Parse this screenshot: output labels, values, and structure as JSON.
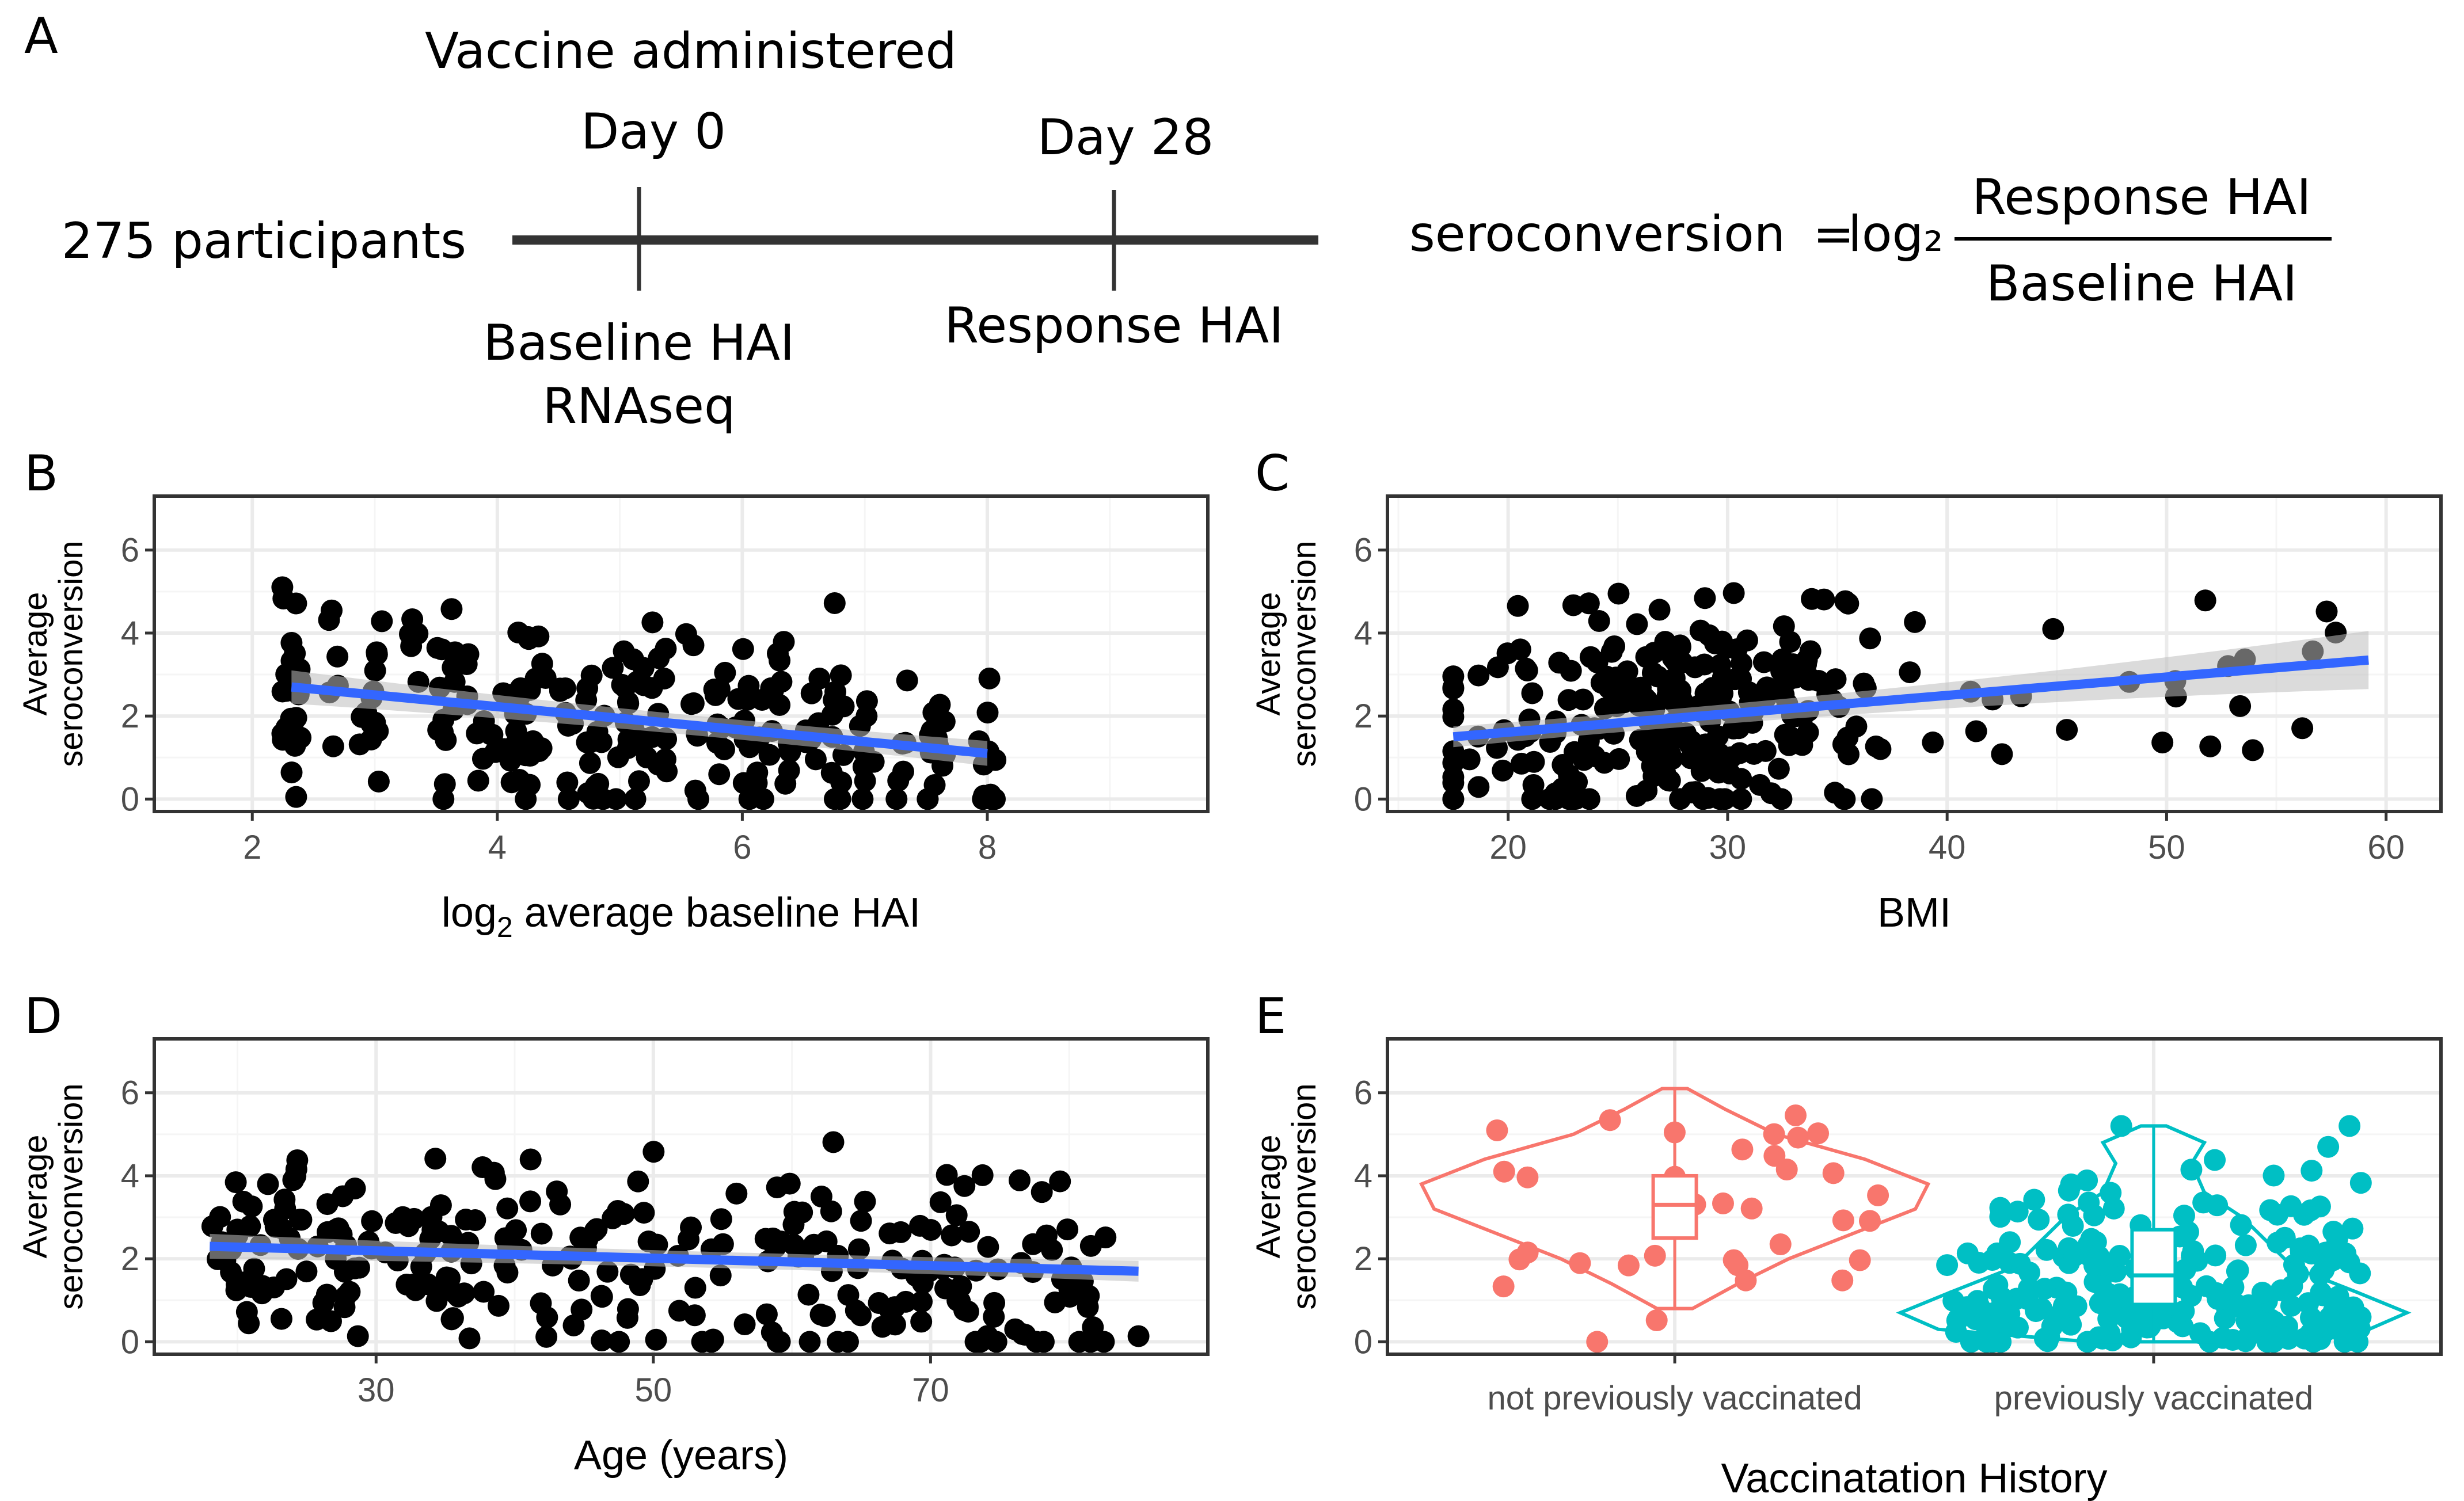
{
  "panel_labels": {
    "A": "A",
    "B": "B",
    "C": "C",
    "D": "D",
    "E": "E"
  },
  "timeline": {
    "event_title": "Vaccine administered",
    "day0": "Day 0",
    "day28": "Day 28",
    "participants": "275 participants",
    "baseline_line1": "Baseline HAI",
    "baseline_line2": "RNAseq",
    "response": "Response HAI"
  },
  "formula": {
    "lhs": "seroconversion",
    "equals": "=",
    "log": "log₂",
    "numerator": "Response HAI",
    "denominator": "Baseline HAI"
  },
  "colors": {
    "point": "#000000",
    "fit_line": "#3366FF",
    "ribbon": "#bdbdbd",
    "not_prev": "#F8766D",
    "prev": "#00BFC4",
    "grid_major": "#ebebeb",
    "grid_minor": "#f5f5f5",
    "panel_border": "#333333"
  },
  "chart_data": [
    {
      "id": "B",
      "type": "scatter",
      "xlabel_main": "log",
      "xlabel_sub": "2",
      "xlabel_rest": " average baseline HAI",
      "ylabel": [
        "Average",
        "seroconversion"
      ],
      "xlim": [
        1.2,
        9.8
      ],
      "ylim": [
        -0.3,
        7.3
      ],
      "xticks": [
        2,
        4,
        6,
        8
      ],
      "yticks": [
        0,
        2,
        4,
        6
      ],
      "fit": {
        "x": [
          2.32,
          8.0
        ],
        "y": [
          2.7,
          1.1
        ],
        "se_lo": [
          2.3,
          0.8
        ],
        "se_hi": [
          3.1,
          1.4
        ]
      },
      "seed": 11,
      "n_points": 275
    },
    {
      "id": "C",
      "type": "scatter",
      "xlabel": "BMI",
      "ylabel": [
        "Average",
        "seroconversion"
      ],
      "xlim": [
        14.5,
        62.5
      ],
      "ylim": [
        -0.3,
        7.3
      ],
      "xticks": [
        20,
        30,
        40,
        50,
        60
      ],
      "yticks": [
        0,
        2,
        4,
        6
      ],
      "fit": {
        "x": [
          17.5,
          59.2
        ],
        "y": [
          1.5,
          3.35
        ],
        "se_lo": [
          1.25,
          2.65
        ],
        "se_hi": [
          1.75,
          4.05
        ]
      },
      "seed": 23,
      "n_points": 275
    },
    {
      "id": "D",
      "type": "scatter",
      "xlabel": "Age (years)",
      "ylabel": [
        "Average",
        "seroconversion"
      ],
      "xlim": [
        14,
        90
      ],
      "ylim": [
        -0.3,
        7.3
      ],
      "xticks": [
        30,
        50,
        70
      ],
      "yticks": [
        0,
        2,
        4,
        6
      ],
      "fit": {
        "x": [
          18,
          85
        ],
        "y": [
          2.3,
          1.7
        ],
        "se_lo": [
          2.0,
          1.45
        ],
        "se_hi": [
          2.6,
          1.95
        ]
      },
      "seed": 37,
      "n_points": 275
    },
    {
      "id": "E",
      "type": "violin",
      "xlabel": "Vaccinatation History",
      "ylabel": [
        "Average",
        "seroconversion"
      ],
      "categories": [
        "not previously vaccinated",
        "previously vaccinated"
      ],
      "ylim": [
        -0.3,
        7.3
      ],
      "yticks": [
        0,
        2,
        4,
        6
      ],
      "groups": [
        {
          "name": "not previously vaccinated",
          "n": 34,
          "box": {
            "q1": 2.5,
            "median": 3.3,
            "q3": 4.0,
            "lo": 0.8,
            "hi": 6.1
          },
          "seed": 51
        },
        {
          "name": "previously vaccinated",
          "n": 241,
          "box": {
            "q1": 0.9,
            "median": 1.6,
            "q3": 2.7,
            "lo": 0.0,
            "hi": 5.2
          },
          "seed": 63
        }
      ]
    }
  ]
}
